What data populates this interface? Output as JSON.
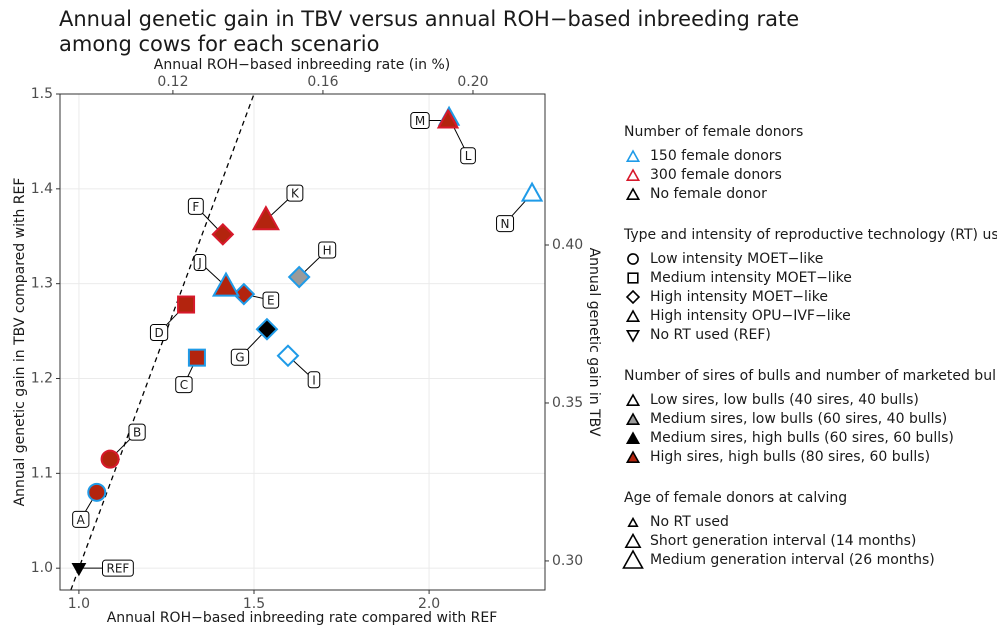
{
  "chart_data": {
    "type": "scatter",
    "title": [
      "Annual genetic gain in TBV versus annual ROH−based inbreeding rate",
      "among cows for each scenario"
    ],
    "x_label": "Annual ROH−based inbreeding rate compared with REF",
    "x2_label": "Annual ROH−based inbreeding rate (in %)",
    "y_label": "Annual genetic gain in TBV compared with REF",
    "y2_label": "Annual genetic gain in TBV",
    "xlim": [
      0.946,
      2.331
    ],
    "xticks": [
      {
        "value": 1.0,
        "label": "1.0"
      },
      1.5,
      {
        "value": 2.0,
        "label": "2.0"
      }
    ],
    "x2lim": [
      0.0899,
      0.2192
    ],
    "x2ticks": [
      0.12,
      0.16,
      {
        "value": 0.2,
        "label": "0.20"
      }
    ],
    "ylim": [
      0.977,
      1.5
    ],
    "yticks": [
      {
        "value": 1.0,
        "label": "1.0"
      },
      1.1,
      1.2,
      1.3,
      1.4,
      1.5
    ],
    "y2lim": [
      0.2908,
      0.4478
    ],
    "y2ticks": [
      {
        "value": 0.3,
        "label": "0.30"
      },
      0.35,
      {
        "value": 0.4,
        "label": "0.40"
      }
    ],
    "grid": true,
    "ref_line": {
      "slope": 1,
      "intercept": 0,
      "dashed": true
    },
    "legends": [
      {
        "title": "Number of female donors",
        "entries": [
          {
            "label": "150 female donors",
            "color": "#1f9be8"
          },
          {
            "label": "300 female donors",
            "color": "#d7192b"
          },
          {
            "label": "No female donor",
            "color": "#000000"
          }
        ]
      },
      {
        "title": "Type and intensity of reproductive technology (RT) used",
        "entries": [
          {
            "label": "Low intensity MOET−like",
            "shape": "circle"
          },
          {
            "label": "Medium intensity MOET−like",
            "shape": "square"
          },
          {
            "label": "High intensity MOET−like",
            "shape": "diamond"
          },
          {
            "label": "High intensity OPU−IVF−like",
            "shape": "triangle"
          },
          {
            "label": "No RT used (REF)",
            "shape": "triangle-down"
          }
        ]
      },
      {
        "title": "Number of sires of bulls and number of marketed bulls",
        "entries": [
          {
            "label": "Low sires, low bulls (40 sires, 40 bulls)",
            "color": "#ffffff"
          },
          {
            "label": "Medium sires, low bulls (60 sires, 40 bulls)",
            "color": "#9a9a9a"
          },
          {
            "label": "Medium sires, high bulls (60 sires, 60 bulls)",
            "color": "#000000"
          },
          {
            "label": "High sires, high bulls (80 sires, 60 bulls)",
            "color": "#b3240e"
          }
        ]
      },
      {
        "title": "Age of female donors at calving",
        "entries": [
          {
            "label": "No RT used"
          },
          {
            "label": "Short generation interval (14 months)"
          },
          {
            "label": "Medium generation interval (26 months)"
          }
        ]
      }
    ],
    "points": [
      {
        "label": "REF",
        "x": 1.0,
        "y": 1.0,
        "donors": 2,
        "rt": 4,
        "sires": 2,
        "age": 0
      },
      {
        "label": "A",
        "x": 1.051,
        "y": 1.08,
        "donors": 0,
        "rt": 0,
        "sires": 3,
        "age": 1
      },
      {
        "label": "B",
        "x": 1.089,
        "y": 1.115,
        "donors": 1,
        "rt": 0,
        "sires": 3,
        "age": 1
      },
      {
        "label": "C",
        "x": 1.337,
        "y": 1.222,
        "donors": 0,
        "rt": 1,
        "sires": 3,
        "age": 1
      },
      {
        "label": "D",
        "x": 1.306,
        "y": 1.278,
        "donors": 1,
        "rt": 1,
        "sires": 3,
        "age": 1
      },
      {
        "label": "E",
        "x": 1.471,
        "y": 1.289,
        "donors": 0,
        "rt": 2,
        "sires": 3,
        "age": 1
      },
      {
        "label": "F",
        "x": 1.411,
        "y": 1.352,
        "donors": 1,
        "rt": 2,
        "sires": 3,
        "age": 1
      },
      {
        "label": "G",
        "x": 1.537,
        "y": 1.252,
        "donors": 0,
        "rt": 2,
        "sires": 2,
        "age": 1
      },
      {
        "label": "H",
        "x": 1.629,
        "y": 1.307,
        "donors": 0,
        "rt": 2,
        "sires": 1,
        "age": 1
      },
      {
        "label": "I",
        "x": 1.597,
        "y": 1.224,
        "donors": 0,
        "rt": 2,
        "sires": 0,
        "age": 1
      },
      {
        "label": "J",
        "x": 1.42,
        "y": 1.297,
        "donors": 0,
        "rt": 3,
        "sires": 3,
        "age": 2
      },
      {
        "label": "K",
        "x": 1.534,
        "y": 1.367,
        "donors": 1,
        "rt": 3,
        "sires": 3,
        "age": 2
      },
      {
        "label": "L",
        "x": 2.057,
        "y": 1.475,
        "donors": 0,
        "rt": 3,
        "sires": 3,
        "age": 1
      },
      {
        "label": "M",
        "x": 2.054,
        "y": 1.472,
        "donors": 1,
        "rt": 3,
        "sires": 3,
        "age": 1
      },
      {
        "label": "N",
        "x": 2.294,
        "y": 1.395,
        "donors": 0,
        "rt": 3,
        "sires": 0,
        "age": 1
      }
    ]
  }
}
